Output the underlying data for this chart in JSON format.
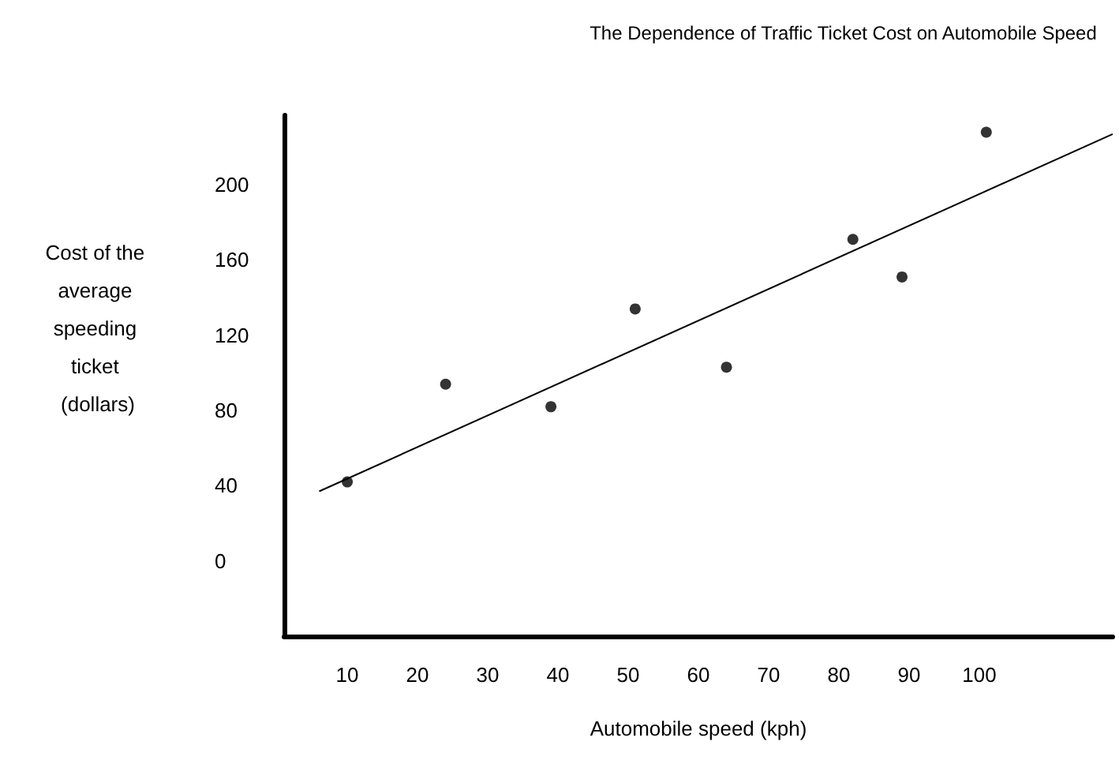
{
  "chart_data": {
    "type": "scatter",
    "title": "The Dependence of Traffic Ticket Cost on Automobile Speed",
    "xlabel": "Automobile speed (kph)",
    "ylabel": "Cost of the average speeding ticket (dollars)",
    "x": [
      10,
      24,
      39,
      51,
      64,
      82,
      89,
      101
    ],
    "series": [
      {
        "color": "#000000",
        "values": [
          42,
          94,
          82,
          134,
          103,
          171,
          151,
          228
        ]
      },
      {
        "type": "line",
        "color": "#000000",
        "marker": "none",
        "x": [
          6,
          119
        ],
        "values": [
          37,
          227
        ]
      }
    ],
    "xlim": [
      1,
      119
    ],
    "xticks": [
      10,
      20,
      30,
      40,
      50,
      60,
      70,
      80,
      90,
      100
    ],
    "ylim": [
      -40,
      237
    ],
    "yticks": [
      0,
      40,
      80,
      120,
      160,
      200
    ],
    "grid": false,
    "marker": "circle",
    "line_style": "solid"
  }
}
